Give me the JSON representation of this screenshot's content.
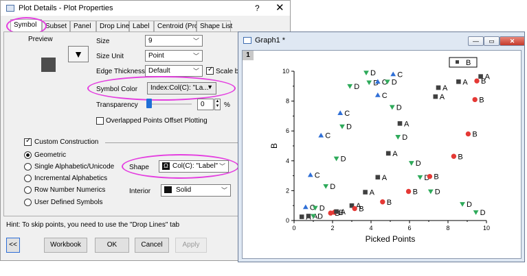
{
  "dialog": {
    "title": "Plot Details - Plot Properties",
    "help": "?",
    "close": "✕",
    "tabs": [
      "Symbol",
      "Subset",
      "Panel",
      "Drop Lines",
      "Label",
      "Centroid (Pro)",
      "Shape List"
    ],
    "preview_label": "Preview",
    "size": {
      "label": "Size",
      "value": "9"
    },
    "size_unit": {
      "label": "Size Unit",
      "value": "Point"
    },
    "edge_thickness": {
      "label": "Edge Thickness",
      "value": "Default",
      "scale_label": "Scale by S"
    },
    "symbol_color": {
      "label": "Symbol Color",
      "value": "Index:Col(C): \"La..."
    },
    "transparency": {
      "label": "Transparency",
      "value": "0",
      "unit": "%",
      "level_percent": 0
    },
    "overlapped_label": "Overlapped Points Offset Plotting",
    "custom_construction": "Custom Construction",
    "radios": [
      "Geometric",
      "Single Alphabetic/Unicode",
      "Incremental Alphabetics",
      "Row Number Numerics",
      "User Defined Symbols"
    ],
    "selected_radio": "Geometric",
    "shape": {
      "label": "Shape",
      "value": "Col(C): \"Label\"",
      "icon_glyph": "Ω"
    },
    "interior": {
      "label": "Interior",
      "value": "Solid"
    },
    "hint": "Hint: To skip points, you need to use the \"Drop Lines\" tab",
    "buttons": {
      "collapse": "<<",
      "workbook": "Workbook",
      "ok": "OK",
      "cancel": "Cancel",
      "apply": "Apply"
    },
    "colors": {
      "highlight": "#e43de0"
    }
  },
  "graph": {
    "title": "Graph1 *",
    "layer": "1",
    "controls": {
      "minimize": "—",
      "restore": "▭",
      "close": "✕"
    },
    "legend_label": "B"
  },
  "chart_data": {
    "type": "scatter",
    "xlabel": "Picked Points",
    "ylabel": "B",
    "xlim": [
      0,
      10
    ],
    "ylim": [
      0,
      10
    ],
    "xticks": [
      0,
      2,
      4,
      6,
      8,
      10
    ],
    "yticks": [
      0,
      2,
      4,
      6,
      8,
      10
    ],
    "grid": false,
    "legend": "top-right",
    "categories": {
      "A": {
        "shape": "square",
        "color": "#404040"
      },
      "B": {
        "shape": "circle",
        "color": "#e53935"
      },
      "C": {
        "shape": "triangle-up",
        "color": "#2f6fd6"
      },
      "D": {
        "shape": "triangle-down",
        "color": "#2eaa5a"
      }
    },
    "points": [
      {
        "x": 0.4,
        "y": 0.25,
        "label": "A"
      },
      {
        "x": 0.6,
        "y": 0.9,
        "label": "C"
      },
      {
        "x": 0.75,
        "y": 0.3,
        "label": "A"
      },
      {
        "x": 1.0,
        "y": 0.3,
        "label": "D"
      },
      {
        "x": 1.1,
        "y": 0.85,
        "label": "D"
      },
      {
        "x": 0.85,
        "y": 3.05,
        "label": "C"
      },
      {
        "x": 1.4,
        "y": 5.7,
        "label": "C"
      },
      {
        "x": 1.65,
        "y": 2.3,
        "label": "D"
      },
      {
        "x": 1.9,
        "y": 0.5,
        "label": "B"
      },
      {
        "x": 2.1,
        "y": 0.55,
        "label": "B"
      },
      {
        "x": 2.2,
        "y": 0.6,
        "label": "A"
      },
      {
        "x": 2.2,
        "y": 4.15,
        "label": "D"
      },
      {
        "x": 2.4,
        "y": 7.2,
        "label": "C"
      },
      {
        "x": 2.5,
        "y": 6.3,
        "label": "D"
      },
      {
        "x": 2.9,
        "y": 9.0,
        "label": "D"
      },
      {
        "x": 3.0,
        "y": 1.0,
        "label": "A"
      },
      {
        "x": 3.15,
        "y": 0.8,
        "label": "B"
      },
      {
        "x": 3.75,
        "y": 9.9,
        "label": "D"
      },
      {
        "x": 3.7,
        "y": 1.9,
        "label": "A"
      },
      {
        "x": 3.9,
        "y": 9.25,
        "label": "D"
      },
      {
        "x": 4.35,
        "y": 2.9,
        "label": "A"
      },
      {
        "x": 4.35,
        "y": 8.4,
        "label": "C"
      },
      {
        "x": 4.35,
        "y": 9.3,
        "label": "C"
      },
      {
        "x": 4.6,
        "y": 1.25,
        "label": "B"
      },
      {
        "x": 4.85,
        "y": 9.3,
        "label": "D"
      },
      {
        "x": 4.9,
        "y": 4.5,
        "label": "A"
      },
      {
        "x": 5.1,
        "y": 7.6,
        "label": "D"
      },
      {
        "x": 5.15,
        "y": 9.8,
        "label": "C"
      },
      {
        "x": 5.4,
        "y": 5.6,
        "label": "D"
      },
      {
        "x": 5.5,
        "y": 6.5,
        "label": "A"
      },
      {
        "x": 5.95,
        "y": 1.95,
        "label": "B"
      },
      {
        "x": 6.1,
        "y": 3.85,
        "label": "D"
      },
      {
        "x": 6.55,
        "y": 2.9,
        "label": "D"
      },
      {
        "x": 7.05,
        "y": 2.95,
        "label": "B"
      },
      {
        "x": 7.1,
        "y": 1.95,
        "label": "D"
      },
      {
        "x": 7.35,
        "y": 8.3,
        "label": "A"
      },
      {
        "x": 7.5,
        "y": 8.9,
        "label": "A"
      },
      {
        "x": 8.3,
        "y": 4.3,
        "label": "B"
      },
      {
        "x": 8.55,
        "y": 9.3,
        "label": "A"
      },
      {
        "x": 8.75,
        "y": 1.1,
        "label": "D"
      },
      {
        "x": 9.05,
        "y": 5.8,
        "label": "B"
      },
      {
        "x": 9.4,
        "y": 8.1,
        "label": "B"
      },
      {
        "x": 9.45,
        "y": 0.55,
        "label": "D"
      },
      {
        "x": 9.5,
        "y": 9.35,
        "label": "B"
      },
      {
        "x": 9.7,
        "y": 9.65,
        "label": "A"
      }
    ]
  }
}
